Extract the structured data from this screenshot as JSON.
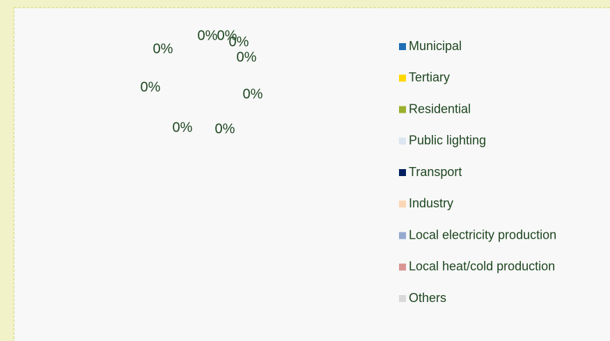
{
  "chart_data": {
    "type": "pie",
    "categories": [
      "Municipal",
      "Tertiary",
      "Residential",
      "Public lighting",
      "Transport",
      "Industry",
      "Local electricity production",
      "Local heat/cold production",
      "Others"
    ],
    "values": [
      0,
      0,
      0,
      0,
      0,
      0,
      0,
      0,
      0
    ],
    "value_labels": [
      "0%",
      "0%",
      "0%",
      "0%",
      "0%",
      "0%",
      "0%",
      "0%",
      "0%"
    ],
    "colors": [
      "#1f6fb5",
      "#ffd700",
      "#9ab02e",
      "#dce6f2",
      "#002060",
      "#fcd5b5",
      "#95a9cf",
      "#d99694",
      "#d9d9d9"
    ],
    "legend": "right"
  }
}
